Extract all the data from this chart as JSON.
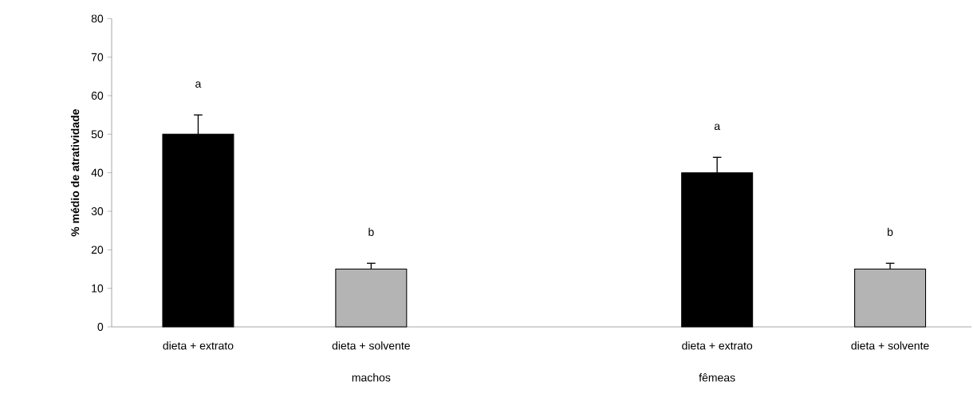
{
  "chart_data": {
    "type": "bar",
    "ylabel": "% médio de atratividade",
    "categories": [
      "dieta + extrato",
      "dieta + solvente",
      null,
      "dieta + extrato",
      "dieta + solvente"
    ],
    "values": [
      50,
      15,
      null,
      40,
      15
    ],
    "colors": [
      "#000000",
      "#b4b4b4",
      null,
      "#000000",
      "#b4b4b4"
    ],
    "errors": [
      [
        50,
        55
      ],
      [
        15,
        16.5
      ],
      null,
      [
        40,
        44
      ],
      [
        15,
        16.5
      ]
    ],
    "ylim": [
      0,
      80
    ],
    "yticks": [
      0,
      10,
      20,
      30,
      40,
      50,
      60,
      70,
      80
    ],
    "annotations": [
      "a",
      "b",
      "a",
      "b",
      "machos",
      "fêmeas"
    ]
  }
}
